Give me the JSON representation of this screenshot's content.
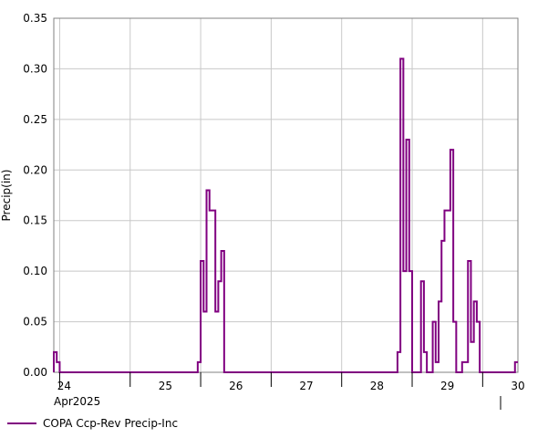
{
  "chart_data": {
    "type": "line",
    "step": true,
    "title": "",
    "xlabel": "",
    "ylabel": "Precip(in)",
    "ylim": [
      0,
      0.35
    ],
    "yticks": [
      "0.00",
      "0.05",
      "0.10",
      "0.15",
      "0.20",
      "0.25",
      "0.30",
      "0.35"
    ],
    "xlim": [
      "2025-04-23T22:00",
      "2025-04-30T12:00"
    ],
    "xticks": [
      {
        "date": "2025-04-24",
        "label": "24"
      },
      {
        "date": "2025-04-25",
        "label": "25"
      },
      {
        "date": "2025-04-26",
        "label": "26"
      },
      {
        "date": "2025-04-27",
        "label": "27"
      },
      {
        "date": "2025-04-28",
        "label": "28"
      },
      {
        "date": "2025-04-29",
        "label": "29"
      },
      {
        "date": "2025-04-30",
        "label": "30"
      }
    ],
    "period_label": "Apr2025",
    "grid": true,
    "legend_position": "bottom-left",
    "series": [
      {
        "name": "COPA Ccp-Rev Precip-Inc",
        "color": "#800080",
        "interval": "1h",
        "points": [
          {
            "x": "2025-04-23T22:00",
            "y": 0.02
          },
          {
            "x": "2025-04-23T23:00",
            "y": 0.01
          },
          {
            "x": "2025-04-24T00:00",
            "y": 0.0
          },
          {
            "x": "2025-04-25T23:00",
            "y": 0.01
          },
          {
            "x": "2025-04-26T00:00",
            "y": 0.11
          },
          {
            "x": "2025-04-26T01:00",
            "y": 0.06
          },
          {
            "x": "2025-04-26T02:00",
            "y": 0.18
          },
          {
            "x": "2025-04-26T03:00",
            "y": 0.16
          },
          {
            "x": "2025-04-26T04:00",
            "y": 0.16
          },
          {
            "x": "2025-04-26T05:00",
            "y": 0.06
          },
          {
            "x": "2025-04-26T06:00",
            "y": 0.09
          },
          {
            "x": "2025-04-26T07:00",
            "y": 0.12
          },
          {
            "x": "2025-04-26T08:00",
            "y": 0.0
          },
          {
            "x": "2025-04-28T19:00",
            "y": 0.02
          },
          {
            "x": "2025-04-28T20:00",
            "y": 0.31
          },
          {
            "x": "2025-04-28T21:00",
            "y": 0.1
          },
          {
            "x": "2025-04-28T22:00",
            "y": 0.23
          },
          {
            "x": "2025-04-28T23:00",
            "y": 0.1
          },
          {
            "x": "2025-04-29T00:00",
            "y": 0.0
          },
          {
            "x": "2025-04-29T03:00",
            "y": 0.09
          },
          {
            "x": "2025-04-29T04:00",
            "y": 0.02
          },
          {
            "x": "2025-04-29T05:00",
            "y": 0.0
          },
          {
            "x": "2025-04-29T07:00",
            "y": 0.05
          },
          {
            "x": "2025-04-29T08:00",
            "y": 0.01
          },
          {
            "x": "2025-04-29T09:00",
            "y": 0.07
          },
          {
            "x": "2025-04-29T10:00",
            "y": 0.13
          },
          {
            "x": "2025-04-29T11:00",
            "y": 0.16
          },
          {
            "x": "2025-04-29T12:00",
            "y": 0.16
          },
          {
            "x": "2025-04-29T13:00",
            "y": 0.22
          },
          {
            "x": "2025-04-29T14:00",
            "y": 0.05
          },
          {
            "x": "2025-04-29T15:00",
            "y": 0.0
          },
          {
            "x": "2025-04-29T17:00",
            "y": 0.01
          },
          {
            "x": "2025-04-29T18:00",
            "y": 0.01
          },
          {
            "x": "2025-04-29T19:00",
            "y": 0.11
          },
          {
            "x": "2025-04-29T20:00",
            "y": 0.03
          },
          {
            "x": "2025-04-29T21:00",
            "y": 0.07
          },
          {
            "x": "2025-04-29T22:00",
            "y": 0.05
          },
          {
            "x": "2025-04-29T23:00",
            "y": 0.0
          },
          {
            "x": "2025-04-30T11:00",
            "y": 0.01
          }
        ]
      }
    ]
  }
}
